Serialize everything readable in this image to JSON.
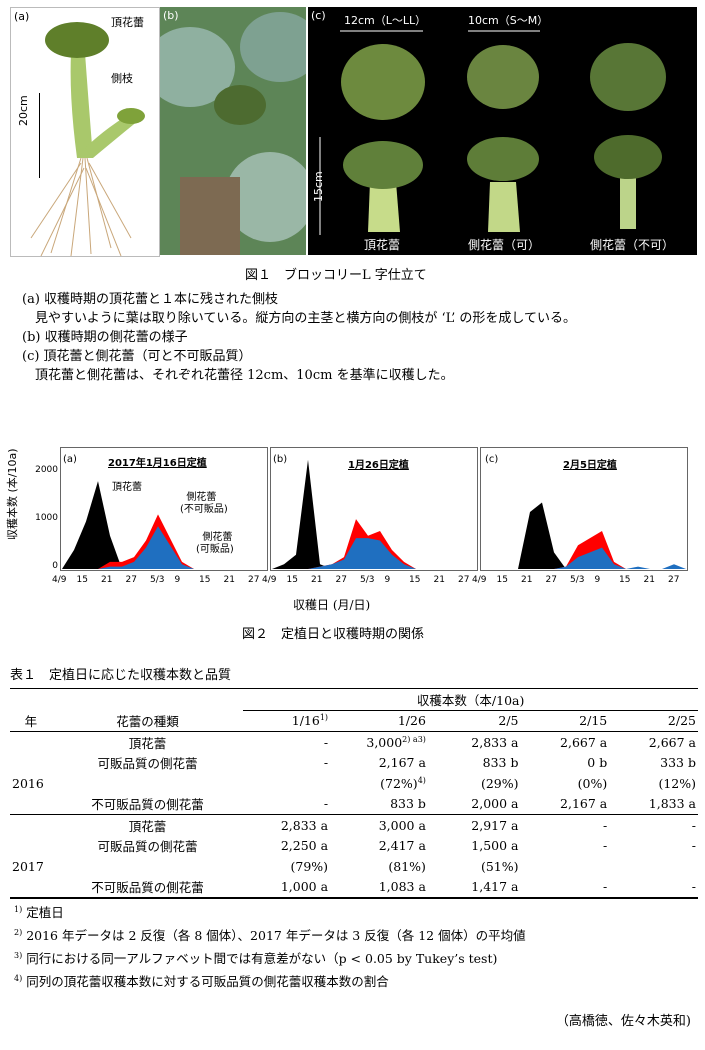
{
  "fig1": {
    "panel_a": {
      "label": "(a)",
      "label_top_bud": "頂花蕾",
      "label_side_branch": "側枝",
      "scale": "20cm"
    },
    "panel_b": {
      "label": "(b)"
    },
    "panel_c": {
      "label": "(c)",
      "size_large": "12cm（L〜LL）",
      "size_small": "10cm（S〜M）",
      "scale": "15cm",
      "label_top": "頂花蕾",
      "label_side_ok": "側花蕾（可）",
      "label_side_ng": "側花蕾（不可）"
    },
    "caption_title": "図１　ブロッコリーL 字仕立て",
    "caption_lines": [
      "(a) 収穫時期の頂花蕾と１本に残された側枝",
      "　見やすいように葉は取り除いている。縦方向の主茎と横方向の側枝が ‘L’ の形を成している。",
      "(b) 収穫時期の側花蕾の様子",
      "(c) 頂花蕾と側花蕾（可と不可販品質）",
      "　頂花蕾と側花蕾は、それぞれ花蕾径 12cm、10cm を基準に収穫した。"
    ]
  },
  "fig2": {
    "ylabel": "収穫本数 (本/10a)",
    "xlabel": "収穫日 (月/日)",
    "caption": "図２　定植日と収穫時期の関係",
    "colors": {
      "top": "#000000",
      "side_unsellable": "#ff0000",
      "side_sellable": "#1f6fc0"
    },
    "y_ticks": [
      "0",
      "1000",
      "2000"
    ],
    "x_ticks": [
      "4/9",
      "15",
      "21",
      "27",
      "5/3",
      "9",
      "15",
      "21",
      "27"
    ],
    "legend_top": "頂花蕾",
    "legend_side_ng": "側花蕾\n(不可販品)",
    "legend_side_ok": "側花蕾\n(可販品)"
  },
  "chart_data": [
    {
      "type": "area",
      "panel": "(a)",
      "title": "2017年1月16日定植",
      "ylim": [
        0,
        2400
      ],
      "x": [
        "4/9",
        "4/12",
        "4/15",
        "4/18",
        "4/21",
        "4/24",
        "4/27",
        "4/30",
        "5/3",
        "5/6",
        "5/9",
        "5/12",
        "5/15",
        "5/18",
        "5/21",
        "5/24",
        "5/27",
        "5/30"
      ],
      "series": [
        {
          "name": "頂花蕾",
          "values": [
            0,
            400,
            1000,
            1850,
            700,
            0,
            0,
            0,
            0,
            0,
            0,
            0,
            0,
            0,
            0,
            0,
            0,
            0
          ]
        },
        {
          "name": "側花蕾(不可販品)",
          "values": [
            0,
            0,
            0,
            0,
            150,
            150,
            250,
            600,
            1150,
            650,
            150,
            0,
            0,
            0,
            0,
            0,
            0,
            0
          ]
        },
        {
          "name": "側花蕾(可販品)",
          "values": [
            0,
            0,
            0,
            0,
            50,
            50,
            150,
            450,
            900,
            500,
            100,
            0,
            0,
            0,
            0,
            0,
            0,
            0
          ]
        }
      ]
    },
    {
      "type": "area",
      "panel": "(b)",
      "title": "1月26日定植",
      "ylim": [
        0,
        2400
      ],
      "x": [
        "4/9",
        "4/12",
        "4/15",
        "4/18",
        "4/21",
        "4/24",
        "4/27",
        "4/30",
        "5/3",
        "5/6",
        "5/9",
        "5/12",
        "5/15",
        "5/18",
        "5/21",
        "5/24",
        "5/27",
        "5/30"
      ],
      "series": [
        {
          "name": "頂花蕾",
          "values": [
            0,
            100,
            300,
            2300,
            100,
            0,
            0,
            0,
            0,
            0,
            0,
            0,
            0,
            0,
            0,
            0,
            0,
            0
          ]
        },
        {
          "name": "側花蕾(不可販品)",
          "values": [
            0,
            0,
            0,
            0,
            50,
            100,
            250,
            1050,
            700,
            800,
            400,
            150,
            0,
            0,
            0,
            0,
            0,
            0
          ]
        },
        {
          "name": "側花蕾(可販品)",
          "values": [
            0,
            0,
            0,
            0,
            50,
            100,
            200,
            650,
            650,
            600,
            300,
            100,
            0,
            0,
            0,
            0,
            0,
            0
          ]
        }
      ]
    },
    {
      "type": "area",
      "panel": "(c)",
      "title": "2月5日定植",
      "ylim": [
        0,
        2400
      ],
      "x": [
        "4/9",
        "4/12",
        "4/15",
        "4/18",
        "4/21",
        "4/24",
        "4/27",
        "4/30",
        "5/3",
        "5/6",
        "5/9",
        "5/12",
        "5/15",
        "5/18",
        "5/21",
        "5/24",
        "5/27",
        "5/30"
      ],
      "series": [
        {
          "name": "頂花蕾",
          "values": [
            0,
            0,
            0,
            0,
            1200,
            1400,
            350,
            0,
            0,
            0,
            0,
            0,
            0,
            0,
            0,
            0,
            0,
            0
          ]
        },
        {
          "name": "側花蕾(不可販品)",
          "values": [
            0,
            0,
            0,
            0,
            0,
            0,
            0,
            50,
            500,
            650,
            800,
            150,
            0,
            0,
            0,
            0,
            0,
            0
          ]
        },
        {
          "name": "側花蕾(可販品)",
          "values": [
            0,
            0,
            0,
            0,
            0,
            0,
            0,
            50,
            250,
            350,
            450,
            100,
            0,
            50,
            0,
            0,
            100,
            0
          ]
        }
      ]
    }
  ],
  "table1": {
    "title": "表１　定植日に応じた収穫本数と品質",
    "header_group": "収穫本数（本/10a)",
    "col_year": "年",
    "col_type": "花蕾の種類",
    "dates": [
      "1/16",
      "1/26",
      "2/5",
      "2/15",
      "2/25"
    ],
    "dates_note": "1)",
    "rows_2016": {
      "year": "2016",
      "top": {
        "type": "頂花蕾",
        "v": [
          "-",
          "3,000",
          "2,833 a",
          "2,667 a",
          "2,667 a"
        ],
        "v1_sup": "2) a3)"
      },
      "ok": {
        "type": "可販品質の側花蕾",
        "v": [
          "-",
          "2,167 a",
          "833 b",
          "0 b",
          "333 b"
        ]
      },
      "ok_pct": {
        "v": [
          "",
          "(72%)",
          "(29%)",
          "(0%)",
          "(12%)"
        ],
        "v1_sup": "4)"
      },
      "ng": {
        "type": "不可販品質の側花蕾",
        "v": [
          "-",
          "833 b",
          "2,000 a",
          "2,167 a",
          "1,833 a"
        ]
      }
    },
    "rows_2017": {
      "year": "2017",
      "top": {
        "type": "頂花蕾",
        "v": [
          "2,833 a",
          "3,000 a",
          "2,917 a",
          "-",
          "-"
        ]
      },
      "ok": {
        "type": "可販品質の側花蕾",
        "v": [
          "2,250 a",
          "2,417 a",
          "1,500 a",
          "-",
          "-"
        ]
      },
      "ok_pct": {
        "v": [
          "(79%)",
          "(81%)",
          "(51%)",
          "",
          ""
        ]
      },
      "ng": {
        "type": "不可販品質の側花蕾",
        "v": [
          "1,000 a",
          "1,083 a",
          "1,417 a",
          "-",
          "-"
        ]
      }
    },
    "footnotes": [
      {
        "sup": "1)",
        "text": "定植日"
      },
      {
        "sup": "2)",
        "text": "2016 年データは 2 反復（各 8 個体）、2017 年データは 3 反復（各 12 個体）の平均値"
      },
      {
        "sup": "3)",
        "text": "同行における同一アルファベット間では有意差がない（p < 0.05 by Tukey’s test)"
      },
      {
        "sup": "4)",
        "text": "同列の頂花蕾収穫本数に対する可販品質の側花蕾収穫本数の割合"
      }
    ],
    "authors": "（高橋徳、佐々木英和)"
  }
}
